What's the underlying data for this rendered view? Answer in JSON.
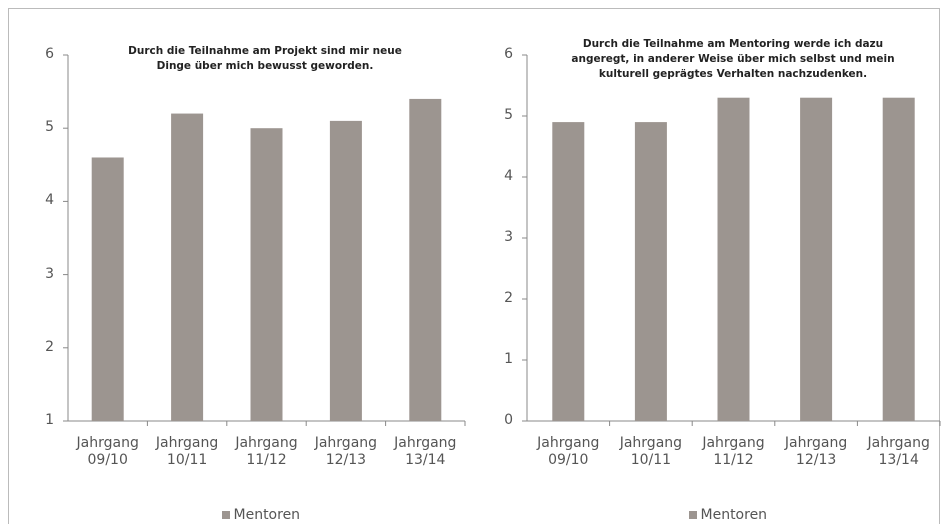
{
  "chart_data": [
    {
      "type": "bar",
      "title": "Durch die Teilnahme am Projekt sind mir neue Dinge über mich bewusst geworden.",
      "categories": [
        "Jahrgang 09/10",
        "Jahrgang 10/11",
        "Jahrgang 11/12",
        "Jahrgang 12/13",
        "Jahrgang 13/14"
      ],
      "series": [
        {
          "name": "Mentoren",
          "color": "#9c9590",
          "values": [
            4.6,
            5.2,
            5.0,
            5.1,
            5.4
          ]
        }
      ],
      "ylim": [
        1,
        6
      ],
      "yticks": [
        1,
        2,
        3,
        4,
        5,
        6
      ],
      "grid": false,
      "legend": "bottom"
    },
    {
      "type": "bar",
      "title": "Durch die Teilnahme am Mentoring werde ich dazu angeregt, in anderer Weise über mich selbst und mein kulturell geprägtes Verhalten nachzudenken.",
      "categories": [
        "Jahrgang 09/10",
        "Jahrgang 10/11",
        "Jahrgang 11/12",
        "Jahrgang 12/13",
        "Jahrgang 13/14"
      ],
      "series": [
        {
          "name": "Mentoren",
          "color": "#9c9590",
          "values": [
            4.9,
            4.9,
            5.3,
            5.3,
            5.3
          ]
        }
      ],
      "ylim": [
        0,
        6
      ],
      "yticks": [
        0,
        1,
        2,
        3,
        4,
        5,
        6
      ],
      "grid": false,
      "legend": "bottom"
    }
  ]
}
